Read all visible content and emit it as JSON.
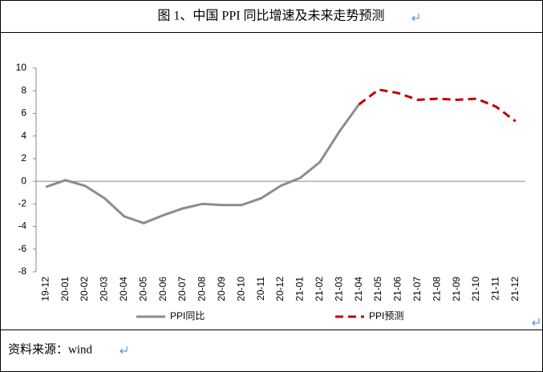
{
  "chart_data": {
    "type": "line",
    "title": "图 1、中国 PPI 同比增速及未来走势预测",
    "source": "资料来源：wind",
    "categories": [
      "19-12",
      "20-01",
      "20-02",
      "20-03",
      "20-04",
      "20-05",
      "20-06",
      "20-07",
      "20-08",
      "20-09",
      "20-10",
      "20-11",
      "20-12",
      "21-01",
      "21-02",
      "21-03",
      "21-04",
      "21-05",
      "21-06",
      "21-07",
      "21-08",
      "21-09",
      "21-10",
      "21-11",
      "21-12"
    ],
    "series": [
      {
        "name": "PPI同比",
        "color": "#8c8c8c",
        "dashed": false,
        "values": [
          -0.5,
          0.1,
          -0.4,
          -1.5,
          -3.1,
          -3.7,
          -3.0,
          -2.4,
          -2.0,
          -2.1,
          -2.1,
          -1.5,
          -0.4,
          0.3,
          1.7,
          4.4,
          6.8,
          null,
          null,
          null,
          null,
          null,
          null,
          null,
          null
        ]
      },
      {
        "name": "PPI预测",
        "color": "#c00000",
        "dashed": true,
        "values": [
          null,
          null,
          null,
          null,
          null,
          null,
          null,
          null,
          null,
          null,
          null,
          null,
          null,
          null,
          null,
          null,
          6.8,
          8.1,
          7.8,
          7.2,
          7.3,
          7.2,
          7.3,
          6.6,
          5.3
        ]
      }
    ],
    "ylim": [
      -8,
      10
    ],
    "yticks": [
      -8,
      -6,
      -4,
      -2,
      0,
      2,
      4,
      6,
      8,
      10
    ],
    "grid": false
  }
}
